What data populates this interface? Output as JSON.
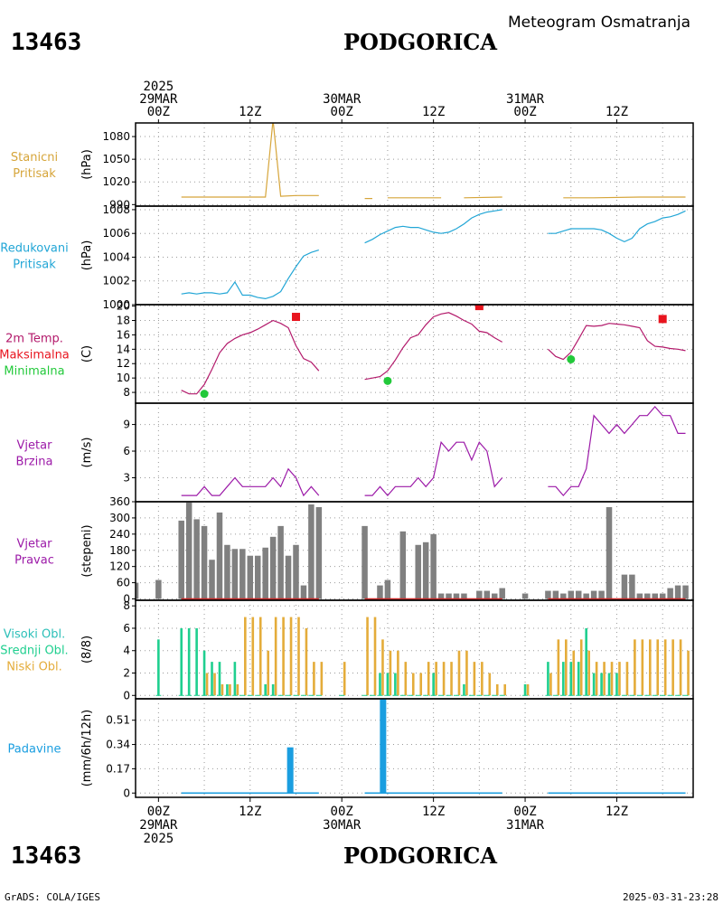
{
  "header": {
    "station_id": "13463",
    "station_name": "PODGORICA",
    "subtitle": "Meteogram Osmatranja"
  },
  "footer": {
    "left": "GrADS: COLA/IGES",
    "right": "2025-03-31-23:28"
  },
  "time_axis": {
    "labels": [
      {
        "hour": 0,
        "lines": [
          "2025",
          "29MAR",
          "00Z"
        ],
        "bottom_lines": [
          "00Z",
          "29MAR",
          "2025"
        ]
      },
      {
        "hour": 12,
        "lines": [
          "12Z"
        ],
        "bottom_lines": [
          "12Z"
        ]
      },
      {
        "hour": 24,
        "lines": [
          "30MAR",
          "00Z"
        ],
        "bottom_lines": [
          "00Z",
          "30MAR"
        ]
      },
      {
        "hour": 36,
        "lines": [
          "12Z"
        ],
        "bottom_lines": [
          "12Z"
        ]
      },
      {
        "hour": 48,
        "lines": [
          "31MAR",
          "00Z"
        ],
        "bottom_lines": [
          "00Z",
          "31MAR"
        ]
      },
      {
        "hour": 60,
        "lines": [
          "12Z"
        ],
        "bottom_lines": [
          "12Z"
        ]
      }
    ],
    "x_range_hours": [
      -3,
      70
    ],
    "grid_hours": [
      0,
      6,
      12,
      18,
      24,
      30,
      36,
      42,
      48,
      54,
      60,
      66
    ]
  },
  "colors": {
    "station_pressure": "#d6a53a",
    "reduced_pressure": "#22a6d6",
    "temperature": "#b3196b",
    "tmax": "#e8141e",
    "tmin": "#22c93a",
    "wind_speed": "#9c1aa8",
    "wind_dir": "#808080",
    "wind_dir_baseline": "#cc2222",
    "high_cloud": "#2bbfb8",
    "mid_cloud": "#1fcf8f",
    "low_cloud": "#e4ac3a",
    "precip": "#1a9ee0"
  },
  "chart_data": [
    {
      "id": "station_pressure",
      "type": "line",
      "side_label": [
        "Stanicni",
        "Pritisak"
      ],
      "ylabel": "(hPa)",
      "ylim": [
        988,
        1098
      ],
      "yticks": [
        990,
        1020,
        1050,
        1080
      ],
      "series": [
        {
          "segments": [
            {
              "x": [
                3,
                13,
                14,
                15,
                16,
                18,
                21
              ],
              "y": [
                1000,
                1000,
                1000,
                1102,
                1001,
                1002,
                1002
              ]
            },
            {
              "x": [
                27,
                28
              ],
              "y": [
                998,
                998
              ]
            },
            {
              "x": [
                30,
                37
              ],
              "y": [
                999,
                999
              ]
            },
            {
              "x": [
                40,
                45
              ],
              "y": [
                999,
                1000
              ]
            },
            {
              "x": [
                53,
                57,
                63,
                69
              ],
              "y": [
                999,
                999,
                1000,
                1000
              ]
            }
          ]
        }
      ]
    },
    {
      "id": "reduced_pressure",
      "type": "line",
      "side_label": [
        "Redukovani",
        "Pritisak"
      ],
      "ylabel": "(hPa)",
      "ylim": [
        1000,
        1008.3
      ],
      "yticks": [
        1000,
        1002,
        1004,
        1006,
        1008
      ],
      "series": [
        {
          "segments": [
            {
              "x": [
                3,
                4,
                5,
                6,
                7,
                8,
                9,
                10,
                11,
                12,
                13,
                14,
                15,
                16,
                17,
                18,
                19,
                20,
                21
              ],
              "y": [
                1000.9,
                1001.0,
                1000.9,
                1001.0,
                1001.0,
                1000.9,
                1001.0,
                1001.9,
                1000.8,
                1000.8,
                1000.6,
                1000.5,
                1000.7,
                1001.1,
                1002.2,
                1003.2,
                1004.1,
                1004.4,
                1004.6
              ]
            },
            {
              "x": [
                27,
                28,
                29,
                30,
                31,
                32,
                33,
                34,
                35,
                36,
                37,
                38,
                39,
                40,
                41,
                42,
                43,
                44,
                45
              ],
              "y": [
                1005.2,
                1005.5,
                1005.9,
                1006.2,
                1006.5,
                1006.6,
                1006.5,
                1006.5,
                1006.3,
                1006.1,
                1006.0,
                1006.1,
                1006.4,
                1006.8,
                1007.3,
                1007.6,
                1007.8,
                1007.9,
                1008.0
              ]
            },
            {
              "x": [
                51,
                52,
                53,
                54,
                55,
                56,
                57,
                58,
                59,
                60,
                61,
                62,
                63,
                64,
                65,
                66,
                67,
                68,
                69
              ],
              "y": [
                1006.0,
                1006.0,
                1006.2,
                1006.4,
                1006.4,
                1006.4,
                1006.4,
                1006.3,
                1006.0,
                1005.6,
                1005.3,
                1005.6,
                1006.4,
                1006.8,
                1007.0,
                1007.3,
                1007.4,
                1007.6,
                1007.9
              ]
            }
          ]
        }
      ]
    },
    {
      "id": "temperature",
      "type": "line",
      "side_label": [
        "2m Temp.",
        "Maksimalna",
        "Minimalna"
      ],
      "ylabel": "(C)",
      "ylim": [
        6.5,
        20.2
      ],
      "yticks": [
        8,
        10,
        12,
        14,
        16,
        18,
        20
      ],
      "series": [
        {
          "name": "2m Temp.",
          "segments": [
            {
              "x": [
                3,
                4,
                5,
                6,
                7,
                8,
                9,
                10,
                11,
                12,
                13,
                14,
                15,
                16,
                17,
                18,
                19,
                20,
                21
              ],
              "y": [
                8.3,
                7.8,
                7.8,
                9.1,
                11.2,
                13.5,
                14.8,
                15.5,
                16.0,
                16.3,
                16.8,
                17.4,
                18.0,
                17.6,
                17.0,
                14.5,
                12.7,
                12.2,
                11.0
              ]
            },
            {
              "x": [
                27,
                28,
                29,
                30,
                31,
                32,
                33,
                34,
                35,
                36,
                37,
                38,
                39,
                40,
                41,
                42,
                43,
                44,
                45
              ],
              "y": [
                9.8,
                10.0,
                10.2,
                11.0,
                12.5,
                14.2,
                15.6,
                16.0,
                17.4,
                18.5,
                18.9,
                19.1,
                18.6,
                18.0,
                17.5,
                16.5,
                16.3,
                15.6,
                15.0
              ]
            },
            {
              "x": [
                51,
                52,
                53,
                54,
                55,
                56,
                57,
                58,
                59,
                60,
                61,
                62,
                63,
                64,
                65,
                66,
                67,
                68,
                69
              ],
              "y": [
                14.0,
                13.0,
                12.6,
                13.6,
                15.4,
                17.3,
                17.2,
                17.3,
                17.6,
                17.5,
                17.4,
                17.2,
                17.0,
                15.2,
                14.4,
                14.3,
                14.1,
                14.0,
                13.8
              ]
            }
          ]
        },
        {
          "name": "Maksimalna",
          "marker": "square",
          "points": [
            {
              "x": 18,
              "y": 18.5
            },
            {
              "x": 42,
              "y": 20.0
            },
            {
              "x": 66,
              "y": 18.2
            }
          ]
        },
        {
          "name": "Minimalna",
          "marker": "circle",
          "points": [
            {
              "x": 6,
              "y": 7.8
            },
            {
              "x": 30,
              "y": 9.6
            },
            {
              "x": 54,
              "y": 12.6
            }
          ]
        }
      ]
    },
    {
      "id": "wind_speed",
      "type": "line",
      "side_label": [
        "Vjetar",
        "Brzina"
      ],
      "ylabel": "(m/s)",
      "ylim": [
        0.3,
        11.4
      ],
      "yticks": [
        3,
        6,
        9
      ],
      "series": [
        {
          "segments": [
            {
              "x": [
                3,
                4,
                5,
                6,
                7,
                8,
                9,
                10,
                11,
                12,
                13,
                14,
                15,
                16,
                17,
                18,
                19,
                20,
                21
              ],
              "y": [
                1.0,
                1.0,
                1.0,
                2.0,
                1.0,
                1.0,
                2.0,
                3.0,
                2.0,
                2.0,
                2.0,
                2.0,
                3.0,
                2.0,
                4.0,
                3.0,
                1.0,
                2.0,
                1.0
              ]
            },
            {
              "x": [
                27,
                28,
                29,
                30,
                31,
                32,
                33,
                34,
                35,
                36,
                37,
                38,
                39,
                40,
                41,
                42,
                43,
                44,
                45
              ],
              "y": [
                1.0,
                1.0,
                2.0,
                1.0,
                2.0,
                2.0,
                2.0,
                3.0,
                2.0,
                3.0,
                7.0,
                6.0,
                7.0,
                7.0,
                5.0,
                7.0,
                6.0,
                2.0,
                3.0
              ]
            },
            {
              "x": [
                51,
                52,
                53,
                54,
                55,
                56,
                57,
                58,
                59,
                60,
                61,
                62,
                63,
                64,
                65,
                66,
                67,
                68,
                69
              ],
              "y": [
                2.0,
                2.0,
                1.0,
                2.0,
                2.0,
                4.0,
                10.0,
                9.0,
                8.0,
                9.0,
                8.0,
                9.0,
                10.0,
                10.0,
                11.0,
                10.0,
                10.0,
                8.0,
                8.0
              ]
            }
          ]
        }
      ]
    },
    {
      "id": "wind_direction",
      "type": "bar",
      "side_label": [
        "Vjetar",
        "Pravac"
      ],
      "ylabel": "(stepeni)",
      "ylim": [
        -5,
        360
      ],
      "yticks": [
        0,
        60,
        120,
        180,
        240,
        300,
        360
      ],
      "x": [
        -3,
        0,
        3,
        4,
        5,
        6,
        7,
        8,
        9,
        10,
        11,
        12,
        13,
        14,
        15,
        16,
        17,
        18,
        19,
        20,
        21,
        24,
        27,
        28,
        29,
        30,
        31,
        32,
        33,
        34,
        35,
        36,
        37,
        38,
        39,
        40,
        41,
        42,
        43,
        44,
        45,
        48,
        51,
        52,
        53,
        54,
        55,
        56,
        57,
        58,
        59,
        60,
        61,
        62,
        63,
        64,
        65,
        66,
        67,
        68,
        69
      ],
      "values": [
        60,
        70,
        290,
        360,
        295,
        270,
        145,
        320,
        200,
        185,
        185,
        160,
        160,
        190,
        230,
        270,
        160,
        200,
        50,
        350,
        340,
        0,
        270,
        0,
        50,
        70,
        0,
        250,
        0,
        200,
        210,
        240,
        20,
        20,
        20,
        20,
        0,
        30,
        30,
        20,
        40,
        20,
        30,
        30,
        20,
        30,
        30,
        20,
        30,
        30,
        340,
        0,
        90,
        90,
        20,
        20,
        20,
        20,
        40,
        50,
        50
      ],
      "baseline_segments": [
        [
          3,
          21
        ],
        [
          27,
          45
        ],
        [
          51,
          69
        ]
      ]
    },
    {
      "id": "clouds",
      "type": "bar",
      "side_label": [
        "Visoki Obl.",
        "Srednji Obl.",
        "Niski Obl."
      ],
      "ylabel": "(8/8)",
      "ylim": [
        -0.3,
        8.5
      ],
      "yticks": [
        0,
        2,
        4,
        6,
        8
      ],
      "x": [
        0,
        3,
        4,
        5,
        6,
        7,
        8,
        9,
        10,
        11,
        12,
        13,
        14,
        15,
        16,
        17,
        18,
        19,
        20,
        21,
        24,
        27,
        28,
        29,
        30,
        31,
        32,
        33,
        34,
        35,
        36,
        37,
        38,
        39,
        40,
        41,
        42,
        43,
        44,
        45,
        48,
        51,
        52,
        53,
        54,
        55,
        56,
        57,
        58,
        59,
        60,
        61,
        62,
        63,
        64,
        65,
        66,
        67,
        68,
        69
      ],
      "series": [
        {
          "name": "Visoki Obl.",
          "values": [
            0,
            0,
            0,
            0,
            0,
            0,
            0,
            0,
            0,
            0,
            0,
            0,
            0,
            0,
            0,
            0,
            0,
            0,
            0,
            0,
            0,
            0,
            0,
            0,
            0,
            0,
            0,
            0,
            0,
            0,
            0,
            0,
            0,
            0,
            0,
            0,
            0,
            0,
            0,
            0,
            0,
            0,
            0,
            0,
            0,
            0,
            0,
            0,
            0,
            0,
            0,
            0,
            0,
            0,
            0,
            0,
            0,
            0,
            0,
            0
          ]
        },
        {
          "name": "Srednji Obl.",
          "values": [
            5,
            6,
            6,
            6,
            4,
            3,
            3,
            1,
            3,
            0,
            0,
            0,
            1,
            1,
            0,
            0,
            0,
            0,
            0,
            0,
            0,
            0,
            0,
            2,
            2,
            2,
            0,
            0,
            0,
            0,
            2,
            0,
            0,
            0,
            1,
            0,
            0,
            0,
            0,
            0,
            1,
            3,
            0,
            3,
            3,
            3,
            6,
            2,
            2,
            2,
            2,
            0,
            0,
            0,
            0,
            0,
            0,
            0,
            0,
            0
          ]
        },
        {
          "name": "Niski Obl.",
          "values": [
            0,
            0,
            0,
            0,
            2,
            2,
            1,
            1,
            1,
            7,
            7,
            7,
            4,
            7,
            7,
            7,
            7,
            6,
            3,
            3,
            3,
            7,
            7,
            5,
            4,
            4,
            3,
            2,
            2,
            3,
            3,
            3,
            3,
            4,
            4,
            3,
            3,
            2,
            1,
            1,
            1,
            2,
            5,
            5,
            4,
            5,
            4,
            3,
            3,
            3,
            3,
            3,
            5,
            5,
            5,
            5,
            5,
            5,
            5,
            4
          ]
        }
      ]
    },
    {
      "id": "precipitation",
      "type": "bar",
      "side_label": [
        "Padavine"
      ],
      "ylabel": "(mm/6h/12h)",
      "ylim": [
        -0.03,
        0.66
      ],
      "yticks": [
        0,
        0.17,
        0.34,
        0.51
      ],
      "x": [
        17.25,
        29.4
      ],
      "values": [
        0.32,
        0.66
      ],
      "baseline_segments": [
        [
          3,
          21
        ],
        [
          27,
          45
        ],
        [
          51,
          69
        ]
      ]
    }
  ]
}
